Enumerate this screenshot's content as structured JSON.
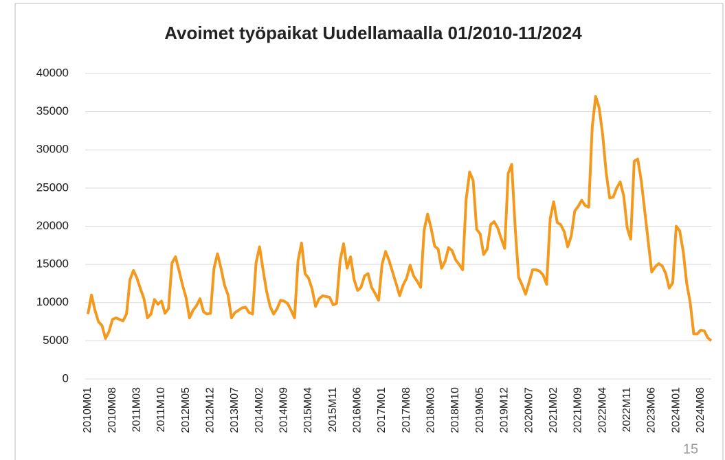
{
  "chart_data": {
    "type": "line",
    "title": "Avoimet työpaikat Uudellamaalla 01/2010-11/2024",
    "categories": [
      "2010M01",
      null,
      null,
      null,
      null,
      null,
      null,
      "2010M08",
      null,
      null,
      null,
      null,
      null,
      null,
      "2011M03",
      null,
      null,
      null,
      null,
      null,
      null,
      "2011M10",
      null,
      null,
      null,
      null,
      null,
      null,
      "2012M05",
      null,
      null,
      null,
      null,
      null,
      null,
      "2012M12",
      null,
      null,
      null,
      null,
      null,
      null,
      "2013M07",
      null,
      null,
      null,
      null,
      null,
      null,
      "2014M02",
      null,
      null,
      null,
      null,
      null,
      null,
      "2014M09",
      null,
      null,
      null,
      null,
      null,
      null,
      "2015M04",
      null,
      null,
      null,
      null,
      null,
      null,
      "2015M11",
      null,
      null,
      null,
      null,
      null,
      null,
      "2016M06",
      null,
      null,
      null,
      null,
      null,
      null,
      "2017M01",
      null,
      null,
      null,
      null,
      null,
      null,
      "2017M08",
      null,
      null,
      null,
      null,
      null,
      null,
      "2018M03",
      null,
      null,
      null,
      null,
      null,
      null,
      "2018M10",
      null,
      null,
      null,
      null,
      null,
      null,
      "2019M05",
      null,
      null,
      null,
      null,
      null,
      null,
      "2019M12",
      null,
      null,
      null,
      null,
      null,
      null,
      "2020M07",
      null,
      null,
      null,
      null,
      null,
      null,
      "2021M02",
      null,
      null,
      null,
      null,
      null,
      null,
      "2021M09",
      null,
      null,
      null,
      null,
      null,
      null,
      "2022M04",
      null,
      null,
      null,
      null,
      null,
      null,
      "2022M11",
      null,
      null,
      null,
      null,
      null,
      null,
      "2023M06",
      null,
      null,
      null,
      null,
      null,
      null,
      "2024M01",
      null,
      null,
      null,
      null,
      null,
      null,
      "2024M08",
      null,
      null,
      null
    ],
    "series": [
      {
        "name": "Avoimet työpaikat",
        "color": "#f39a1e",
        "values": [
          8500,
          11000,
          9000,
          7500,
          7000,
          5300,
          6200,
          7800,
          8000,
          7800,
          7600,
          8500,
          13000,
          14200,
          13200,
          11800,
          10500,
          8000,
          8500,
          10400,
          9800,
          10200,
          8600,
          9200,
          15200,
          16000,
          14200,
          12300,
          10700,
          8000,
          9000,
          9600,
          10500,
          8800,
          8500,
          8600,
          14500,
          16400,
          14500,
          12300,
          11000,
          8000,
          8700,
          9000,
          9300,
          9400,
          8700,
          8500,
          15200,
          17300,
          14300,
          11500,
          9500,
          8500,
          9200,
          10300,
          10200,
          9900,
          9000,
          8000,
          15500,
          17800,
          13800,
          13200,
          11800,
          9500,
          10500,
          10900,
          10800,
          10700,
          9700,
          9900,
          15500,
          17700,
          14500,
          16000,
          13000,
          11600,
          12000,
          13500,
          13800,
          12000,
          11200,
          10300,
          15000,
          16700,
          15500,
          14000,
          12500,
          10900,
          12300,
          13200,
          14900,
          13500,
          12800,
          12000,
          19500,
          21600,
          19700,
          17400,
          17000,
          14500,
          15400,
          17200,
          16800,
          15600,
          15000,
          14300,
          23500,
          27100,
          26000,
          19600,
          19000,
          16300,
          17000,
          20200,
          20600,
          19800,
          18400,
          17100,
          26900,
          28100,
          19800,
          13300,
          12300,
          11100,
          12700,
          14300,
          14300,
          14100,
          13600,
          12400,
          21000,
          23200,
          20500,
          20200,
          19300,
          17300,
          18700,
          22000,
          22600,
          23400,
          22700,
          22500,
          33000,
          37000,
          35500,
          32000,
          27000,
          23700,
          23800,
          25000,
          25800,
          24000,
          19800,
          18300,
          28500,
          28800,
          26000,
          22000,
          18000,
          14000,
          14700,
          15100,
          14800,
          13800,
          11900,
          12600,
          20000,
          19400,
          16700,
          12500,
          10000,
          5900,
          5900,
          6400,
          6300,
          5400,
          5000
        ]
      }
    ],
    "ylim": [
      0,
      40000
    ],
    "yticks": [
      0,
      5000,
      10000,
      15000,
      20000,
      25000,
      30000,
      35000,
      40000
    ],
    "grid": true,
    "page_number": "15"
  }
}
